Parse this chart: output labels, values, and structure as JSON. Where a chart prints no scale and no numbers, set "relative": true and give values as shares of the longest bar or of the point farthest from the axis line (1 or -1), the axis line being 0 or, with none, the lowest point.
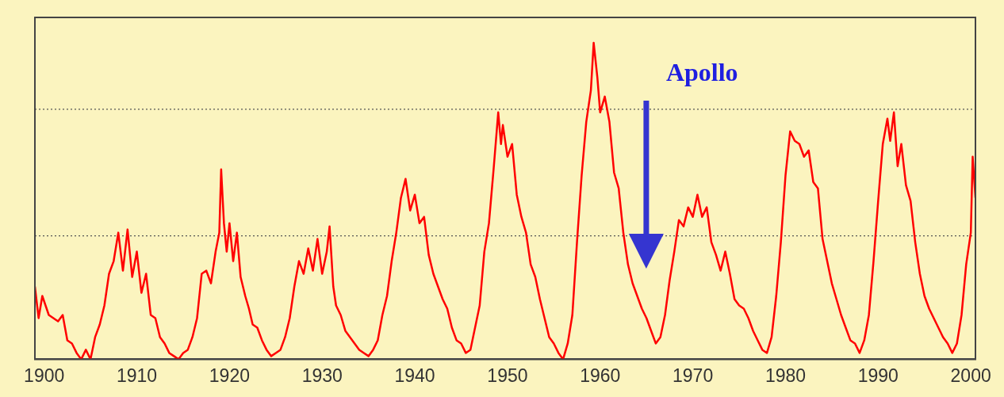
{
  "chart_data": {
    "type": "line",
    "relative": true,
    "xlim": [
      1899,
      2000.5
    ],
    "xticks": [
      1900,
      1910,
      1920,
      1930,
      1940,
      1950,
      1960,
      1970,
      1980,
      1990,
      2000
    ],
    "grid": false,
    "legend": false,
    "marker": "none",
    "line_style": "solid",
    "tick_labels": "x",
    "x": [
      1899,
      1899.4,
      1899.8,
      1900.5,
      1901.5,
      1902,
      1902.5,
      1903,
      1903.5,
      1904,
      1904.5,
      1905,
      1905.5,
      1906,
      1906.5,
      1907,
      1907.5,
      1908,
      1908.5,
      1909,
      1909.5,
      1910,
      1910.5,
      1911,
      1911.5,
      1912,
      1912.5,
      1913,
      1913.5,
      1914,
      1914.5,
      1915,
      1915.5,
      1916,
      1916.5,
      1917,
      1917.5,
      1918,
      1918.5,
      1918.9,
      1919.1,
      1919.4,
      1919.7,
      1920,
      1920.4,
      1920.8,
      1921.2,
      1921.7,
      1922.1,
      1922.5,
      1923,
      1923.5,
      1924,
      1924.5,
      1925,
      1925.5,
      1926,
      1926.5,
      1927,
      1927.5,
      1928,
      1928.5,
      1929,
      1929.5,
      1930,
      1930.5,
      1930.8,
      1931.2,
      1931.5,
      1932,
      1932.5,
      1933,
      1933.5,
      1934,
      1934.5,
      1935,
      1935.5,
      1936,
      1936.5,
      1937,
      1937.5,
      1938,
      1938.5,
      1939,
      1939.5,
      1940,
      1940.5,
      1941,
      1941.5,
      1942,
      1942.5,
      1943,
      1943.5,
      1944,
      1944.5,
      1945,
      1945.5,
      1946,
      1946.5,
      1947,
      1947.5,
      1948,
      1948.5,
      1949,
      1949.3,
      1949.5,
      1950,
      1950.5,
      1951,
      1951.5,
      1952,
      1952.5,
      1953,
      1953.5,
      1954,
      1954.5,
      1955,
      1955.5,
      1956,
      1956.5,
      1957,
      1957.5,
      1958,
      1958.5,
      1959,
      1959.3,
      1959.7,
      1960,
      1960.5,
      1961,
      1961.5,
      1962,
      1962.5,
      1963,
      1963.5,
      1964,
      1964.5,
      1965,
      1965.5,
      1966,
      1966.5,
      1967,
      1967.5,
      1968,
      1968.5,
      1969,
      1969.5,
      1970,
      1970.5,
      1971,
      1971.5,
      1972,
      1972.5,
      1973,
      1973.5,
      1974,
      1974.5,
      1975,
      1975.5,
      1976,
      1976.5,
      1977,
      1977.5,
      1978,
      1978.5,
      1979,
      1979.5,
      1980,
      1980.5,
      1981,
      1981.5,
      1982,
      1982.5,
      1983,
      1983.5,
      1984,
      1984.5,
      1985,
      1985.5,
      1986,
      1986.5,
      1987,
      1987.5,
      1988,
      1988.5,
      1989,
      1989.5,
      1990,
      1990.5,
      1991,
      1991.3,
      1991.7,
      1992.1,
      1992.5,
      1993,
      1993.5,
      1994,
      1994.5,
      1995,
      1995.5,
      1996,
      1996.5,
      1997,
      1997.5,
      1998,
      1998.5,
      1999,
      1999.5,
      2000,
      2000.2,
      2000.5
    ],
    "series": [
      {
        "color": "#ff0000",
        "values": [
          0.23,
          0.13,
          0.2,
          0.14,
          0.12,
          0.14,
          0.06,
          0.05,
          0.02,
          0,
          0.03,
          0,
          0.07,
          0.11,
          0.17,
          0.27,
          0.31,
          0.4,
          0.28,
          0.41,
          0.26,
          0.34,
          0.21,
          0.27,
          0.14,
          0.13,
          0.07,
          0.05,
          0.02,
          0.01,
          0,
          0.02,
          0.03,
          0.07,
          0.13,
          0.27,
          0.28,
          0.24,
          0.34,
          0.4,
          0.6,
          0.43,
          0.34,
          0.43,
          0.31,
          0.4,
          0.26,
          0.2,
          0.16,
          0.11,
          0.1,
          0.06,
          0.03,
          0.01,
          0.02,
          0.03,
          0.07,
          0.13,
          0.23,
          0.31,
          0.27,
          0.35,
          0.28,
          0.38,
          0.27,
          0.34,
          0.42,
          0.23,
          0.17,
          0.14,
          0.09,
          0.07,
          0.05,
          0.03,
          0.02,
          0.01,
          0.03,
          0.06,
          0.14,
          0.2,
          0.31,
          0.4,
          0.51,
          0.57,
          0.47,
          0.52,
          0.43,
          0.45,
          0.33,
          0.27,
          0.23,
          0.19,
          0.16,
          0.1,
          0.06,
          0.05,
          0.02,
          0.03,
          0.1,
          0.17,
          0.34,
          0.43,
          0.6,
          0.78,
          0.68,
          0.74,
          0.64,
          0.68,
          0.52,
          0.45,
          0.4,
          0.3,
          0.26,
          0.19,
          0.13,
          0.07,
          0.05,
          0.02,
          0,
          0.05,
          0.14,
          0.37,
          0.58,
          0.75,
          0.85,
          1,
          0.89,
          0.78,
          0.83,
          0.75,
          0.59,
          0.54,
          0.4,
          0.3,
          0.24,
          0.2,
          0.16,
          0.13,
          0.09,
          0.05,
          0.07,
          0.14,
          0.25,
          0.34,
          0.44,
          0.42,
          0.48,
          0.45,
          0.52,
          0.45,
          0.48,
          0.37,
          0.33,
          0.28,
          0.34,
          0.27,
          0.19,
          0.17,
          0.16,
          0.13,
          0.09,
          0.06,
          0.03,
          0.02,
          0.07,
          0.2,
          0.37,
          0.58,
          0.72,
          0.69,
          0.68,
          0.64,
          0.66,
          0.56,
          0.54,
          0.38,
          0.31,
          0.24,
          0.19,
          0.14,
          0.1,
          0.06,
          0.05,
          0.02,
          0.06,
          0.14,
          0.31,
          0.5,
          0.68,
          0.76,
          0.69,
          0.78,
          0.61,
          0.68,
          0.55,
          0.5,
          0.37,
          0.27,
          0.2,
          0.16,
          0.13,
          0.1,
          0.07,
          0.05,
          0.02,
          0.05,
          0.14,
          0.3,
          0.4,
          0.64,
          0.51
        ]
      }
    ],
    "ref_lines": [
      {
        "axis": "y",
        "value": 0.39,
        "line_style": "dotted",
        "color": "#555555"
      },
      {
        "axis": "y",
        "value": 0.79,
        "line_style": "dotted",
        "color": "#555555"
      }
    ],
    "annotations": [
      "Apollo"
    ]
  }
}
